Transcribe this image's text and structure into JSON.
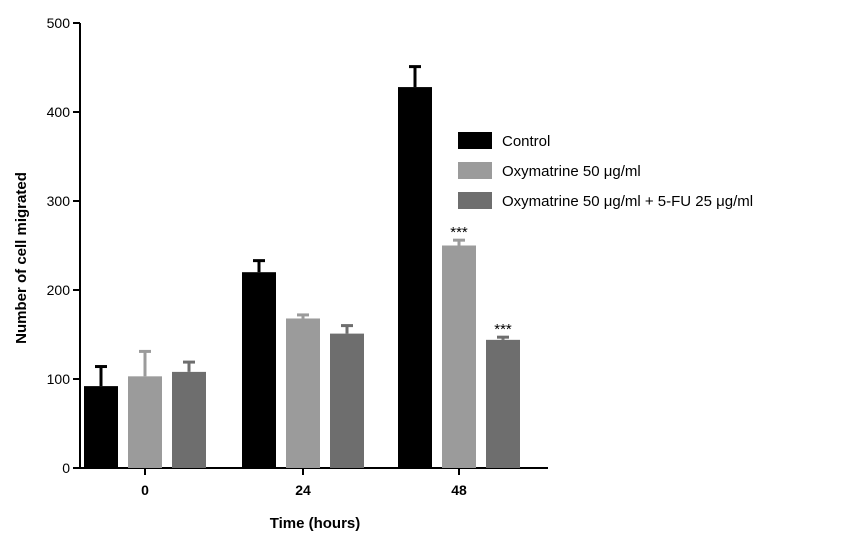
{
  "chart_data": {
    "type": "bar",
    "xlabel": "Time (hours)",
    "ylabel": "Number of cell migrated",
    "categories": [
      "0",
      "24",
      "48"
    ],
    "ylim": [
      0,
      500
    ],
    "yticks": [
      "0",
      "100",
      "200",
      "300",
      "400",
      "500"
    ],
    "legend_position": "right",
    "series": [
      {
        "name": "Control",
        "color": "#000000",
        "values": [
          92,
          220,
          428
        ],
        "errors": [
          22,
          13,
          23
        ],
        "significance": [
          "",
          "",
          ""
        ]
      },
      {
        "name": "Oxymatrine 50 μg/ml",
        "color": "#9b9b9b",
        "values": [
          103,
          168,
          250
        ],
        "errors": [
          28,
          4,
          6
        ],
        "significance": [
          "",
          "",
          "***"
        ]
      },
      {
        "name": "Oxymatrine 50 μg/ml + 5-FU 25 μg/ml",
        "color": "#6e6e6e",
        "values": [
          108,
          151,
          144
        ],
        "errors": [
          11,
          9,
          3
        ],
        "significance": [
          "",
          "",
          "***"
        ]
      }
    ]
  }
}
